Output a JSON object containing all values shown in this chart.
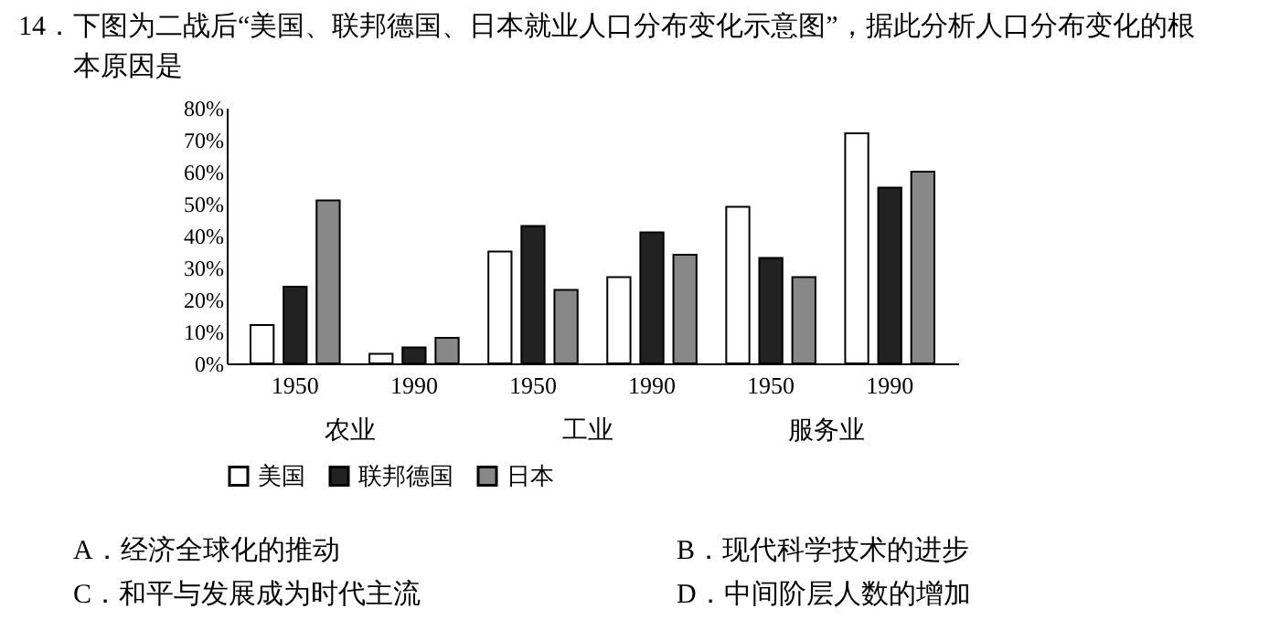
{
  "chart_data": {
    "type": "bar",
    "title": "14．下图为二战后“美国、联邦德国、日本就业人口分布变化示意图”，据此分析人口分布变化的根本原因是",
    "categories": [
      "1950",
      "1990",
      "1950",
      "1990",
      "1950",
      "1990"
    ],
    "series": [
      {
        "name": "美国",
        "color": "#ffffff",
        "values": [
          12,
          3,
          35,
          27,
          49,
          72
        ]
      },
      {
        "name": "联邦德国",
        "color": "#222222",
        "values": [
          24,
          5,
          43,
          41,
          33,
          55
        ]
      },
      {
        "name": "日本",
        "color": "#888888",
        "values": [
          51,
          8,
          23,
          34,
          27,
          60
        ]
      }
    ],
    "ylim": [
      0,
      80
    ],
    "yticks": [
      {
        "value": 0,
        "label": "0%"
      },
      {
        "value": 10,
        "label": "10%"
      },
      {
        "value": 20,
        "label": "20%"
      },
      {
        "value": 30,
        "label": "30%"
      },
      {
        "value": 40,
        "label": "40%"
      },
      {
        "value": 50,
        "label": "50%"
      },
      {
        "value": 60,
        "label": "60%"
      },
      {
        "value": 70,
        "label": "70%"
      },
      {
        "value": 80,
        "label": "80%"
      }
    ],
    "grid": false,
    "legend": "bottom",
    "annotations": [
      "农业",
      "工业",
      "服务业",
      "A．经济全球化的推动",
      "B．现代科学技术的进步",
      "C．和平与发展成为时代主流",
      "D．中间阶层人数的增加"
    ]
  }
}
